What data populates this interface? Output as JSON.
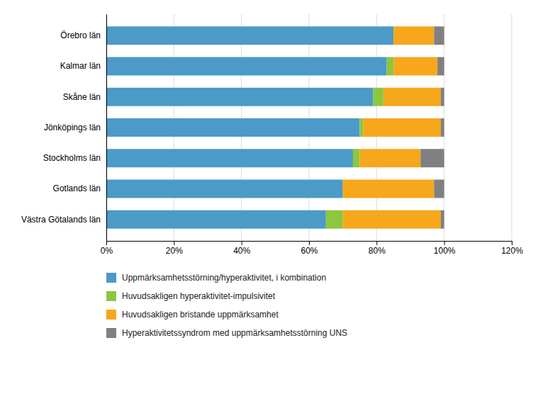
{
  "chart_data": {
    "type": "bar",
    "orientation": "horizontal",
    "stacked": true,
    "categories": [
      "Örebro län",
      "Kalmar län",
      "Skåne län",
      "Jönköpings län",
      "Stockholms län",
      "Gotlands län",
      "Västra Götalands län"
    ],
    "series": [
      {
        "name": "Uppmärksamhetsstörning/hyperaktivitet, i kombination",
        "color": "#4B9AC7",
        "values": [
          85,
          83,
          79,
          75,
          73,
          70,
          65
        ]
      },
      {
        "name": "Huvudsakligen hyperaktivitet-impulsivitet",
        "color": "#8DC63F",
        "values": [
          0,
          2,
          3,
          1,
          2,
          0,
          5
        ]
      },
      {
        "name": "Huvudsakligen bristande uppmärksamhet",
        "color": "#F7A71C",
        "values": [
          12,
          13,
          17,
          23,
          18,
          27,
          29
        ]
      },
      {
        "name": "Hyperaktivitetssyndrom med uppmärksamhetsstörning UNS",
        "color": "#808080",
        "values": [
          3,
          2,
          1,
          1,
          7,
          3,
          1
        ]
      }
    ],
    "xlim": [
      0,
      120
    ],
    "xticks": [
      {
        "value": 0,
        "label": "0%"
      },
      {
        "value": 20,
        "label": "20%"
      },
      {
        "value": 40,
        "label": "40%"
      },
      {
        "value": 60,
        "label": "60%"
      },
      {
        "value": 80,
        "label": "80%"
      },
      {
        "value": 100,
        "label": "100%"
      },
      {
        "value": 120,
        "label": "120%"
      }
    ],
    "grid": true,
    "legend": "bottom"
  }
}
